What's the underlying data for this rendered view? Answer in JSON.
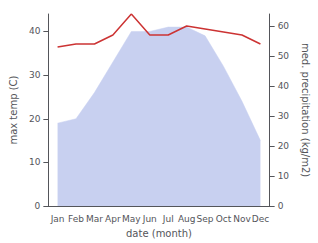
{
  "chart_data": {
    "type": "line",
    "categories": [
      "Jan",
      "Feb",
      "Mar",
      "Apr",
      "May",
      "Jun",
      "Jul",
      "Aug",
      "Sep",
      "Oct",
      "Nov",
      "Dec"
    ],
    "xlabel": "date (month)",
    "ylabel": "max temp (C)",
    "y2label": "med. precipitation (kg/m2)",
    "series": [
      {
        "type": "area",
        "color": "#c8d0f0",
        "values": [
          19,
          20,
          26,
          33,
          40,
          40,
          41,
          41,
          39,
          32,
          24,
          15
        ]
      },
      {
        "type": "line",
        "axis": "y2",
        "color": "#cc3333",
        "values": [
          53,
          54,
          54,
          57,
          64,
          57,
          57,
          60,
          59,
          58,
          57,
          54
        ]
      }
    ],
    "ylim": [
      0,
      44
    ],
    "yticks": [
      0,
      10,
      20,
      30,
      40
    ],
    "y2lim": [
      0,
      64
    ],
    "y2ticks": [
      0,
      10,
      20,
      30,
      40,
      50,
      60
    ],
    "grid": false
  }
}
